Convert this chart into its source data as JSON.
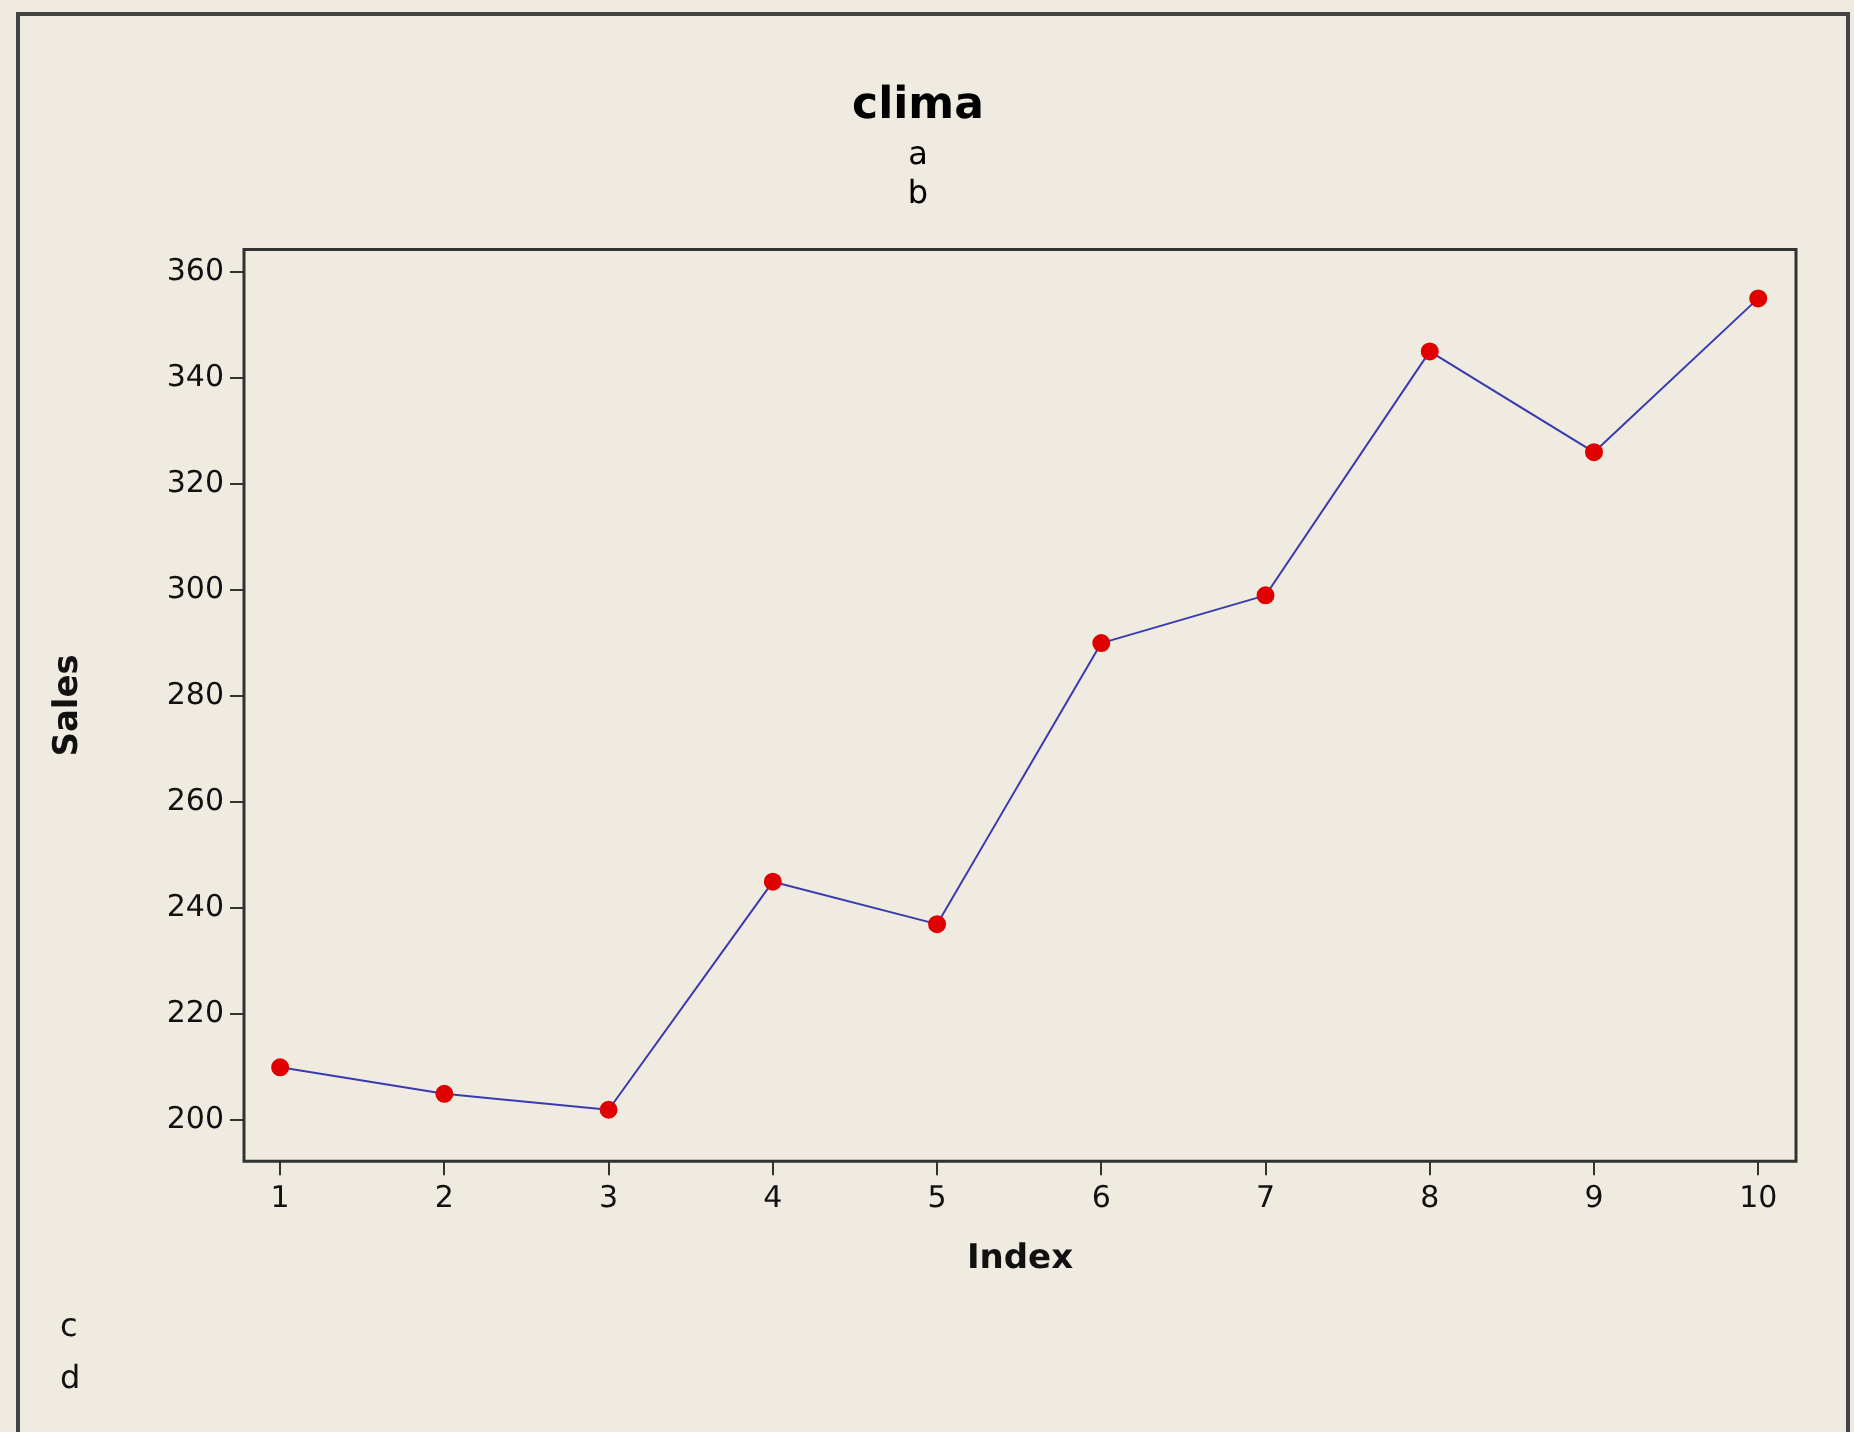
{
  "chart_data": {
    "type": "line",
    "title": "clima",
    "subtitle": "a\nb",
    "xlabel": "Index",
    "ylabel": "Sales",
    "x": [
      1,
      2,
      3,
      4,
      5,
      6,
      7,
      8,
      9,
      10
    ],
    "series": [
      {
        "color": "#3a3ab0",
        "colors": [
          "#e00000",
          "#e00000",
          "#e00000",
          "#e00000",
          "#e00000",
          "#e00000",
          "#e00000",
          "#e00000",
          "#e00000",
          "#e00000"
        ],
        "values": [
          210,
          205,
          202,
          245,
          237,
          290,
          299,
          345,
          326,
          355
        ]
      }
    ],
    "marker": "circle",
    "line_style": "solid",
    "xlim": [
      0.78,
      10.23
    ],
    "xticks": [
      1,
      2,
      3,
      4,
      5,
      6,
      7,
      8,
      9,
      10
    ],
    "ylim": [
      192.3,
      364.2
    ],
    "yticks": [
      200,
      220,
      240,
      260,
      280,
      300,
      320,
      340,
      360
    ],
    "grid": false,
    "legend": false,
    "annotations": [
      "c",
      "d"
    ]
  }
}
